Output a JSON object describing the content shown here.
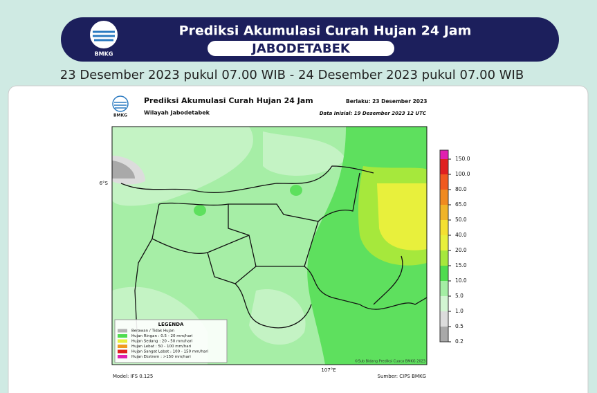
{
  "header": {
    "logo": "BMKG",
    "title": "Prediksi Akumulasi Curah Hujan 24 Jam",
    "region": "JABODETABEK",
    "period": "23 Desember 2023 pukul 07.00 WIB - 24 Desember 2023 pukul 07.00 WIB"
  },
  "map": {
    "logo": "BMKG",
    "title": "Prediksi Akumulasi Curah Hujan 24 Jam",
    "valid": "Berlaku:  23 Desember 2023",
    "area": "Wilayah Jabodetabek",
    "init": "Data Inisial:  19 Desember 2023 12 UTC",
    "lat_label": "6°S",
    "lon_label": "107°E",
    "credit": "©Sub Bidang Prediksi Cuaca BMKG 2023",
    "model": "Model: IFS 0.125",
    "source": "Sumber: CIPS BMKG"
  },
  "legend": {
    "title": "LEGENDA",
    "items": [
      {
        "text": "Berawan / Tidak Hujan",
        "color": "#b4b4b4"
      },
      {
        "text": "Hujan Ringan : 0.5 - 20 mm/hari",
        "color": "#4fdc4f"
      },
      {
        "text": "Hujan Sedang : 20 - 50 mm/hari",
        "color": "#e8f03c"
      },
      {
        "text": "Hujan Lebat : 50 - 100 mm/hari",
        "color": "#f09a20"
      },
      {
        "text": "Hujan Sangat Lebat : 100 - 150 mm/hari",
        "color": "#e02020"
      },
      {
        "text": "Hujan Ekstrem : >150 mm/hari",
        "color": "#e020b0"
      }
    ]
  },
  "colorbar": [
    {
      "label": "0.2",
      "color": "#a9a9a9"
    },
    {
      "label": "0.5",
      "color": "#dcdcdc"
    },
    {
      "label": "1.0",
      "color": "#d2f5d2"
    },
    {
      "label": "5.0",
      "color": "#a4eea4"
    },
    {
      "label": "10.0",
      "color": "#4fdc4f"
    },
    {
      "label": "15.0",
      "color": "#a6e83c"
    },
    {
      "label": "20.0",
      "color": "#e8f03c"
    },
    {
      "label": "40.0",
      "color": "#f4e030"
    },
    {
      "label": "50.0",
      "color": "#f0b428"
    },
    {
      "label": "65.0",
      "color": "#f08a20"
    },
    {
      "label": "80.0",
      "color": "#f05a20"
    },
    {
      "label": "100.0",
      "color": "#e02020"
    },
    {
      "label": "150.0",
      "color": "#e020b0"
    }
  ]
}
